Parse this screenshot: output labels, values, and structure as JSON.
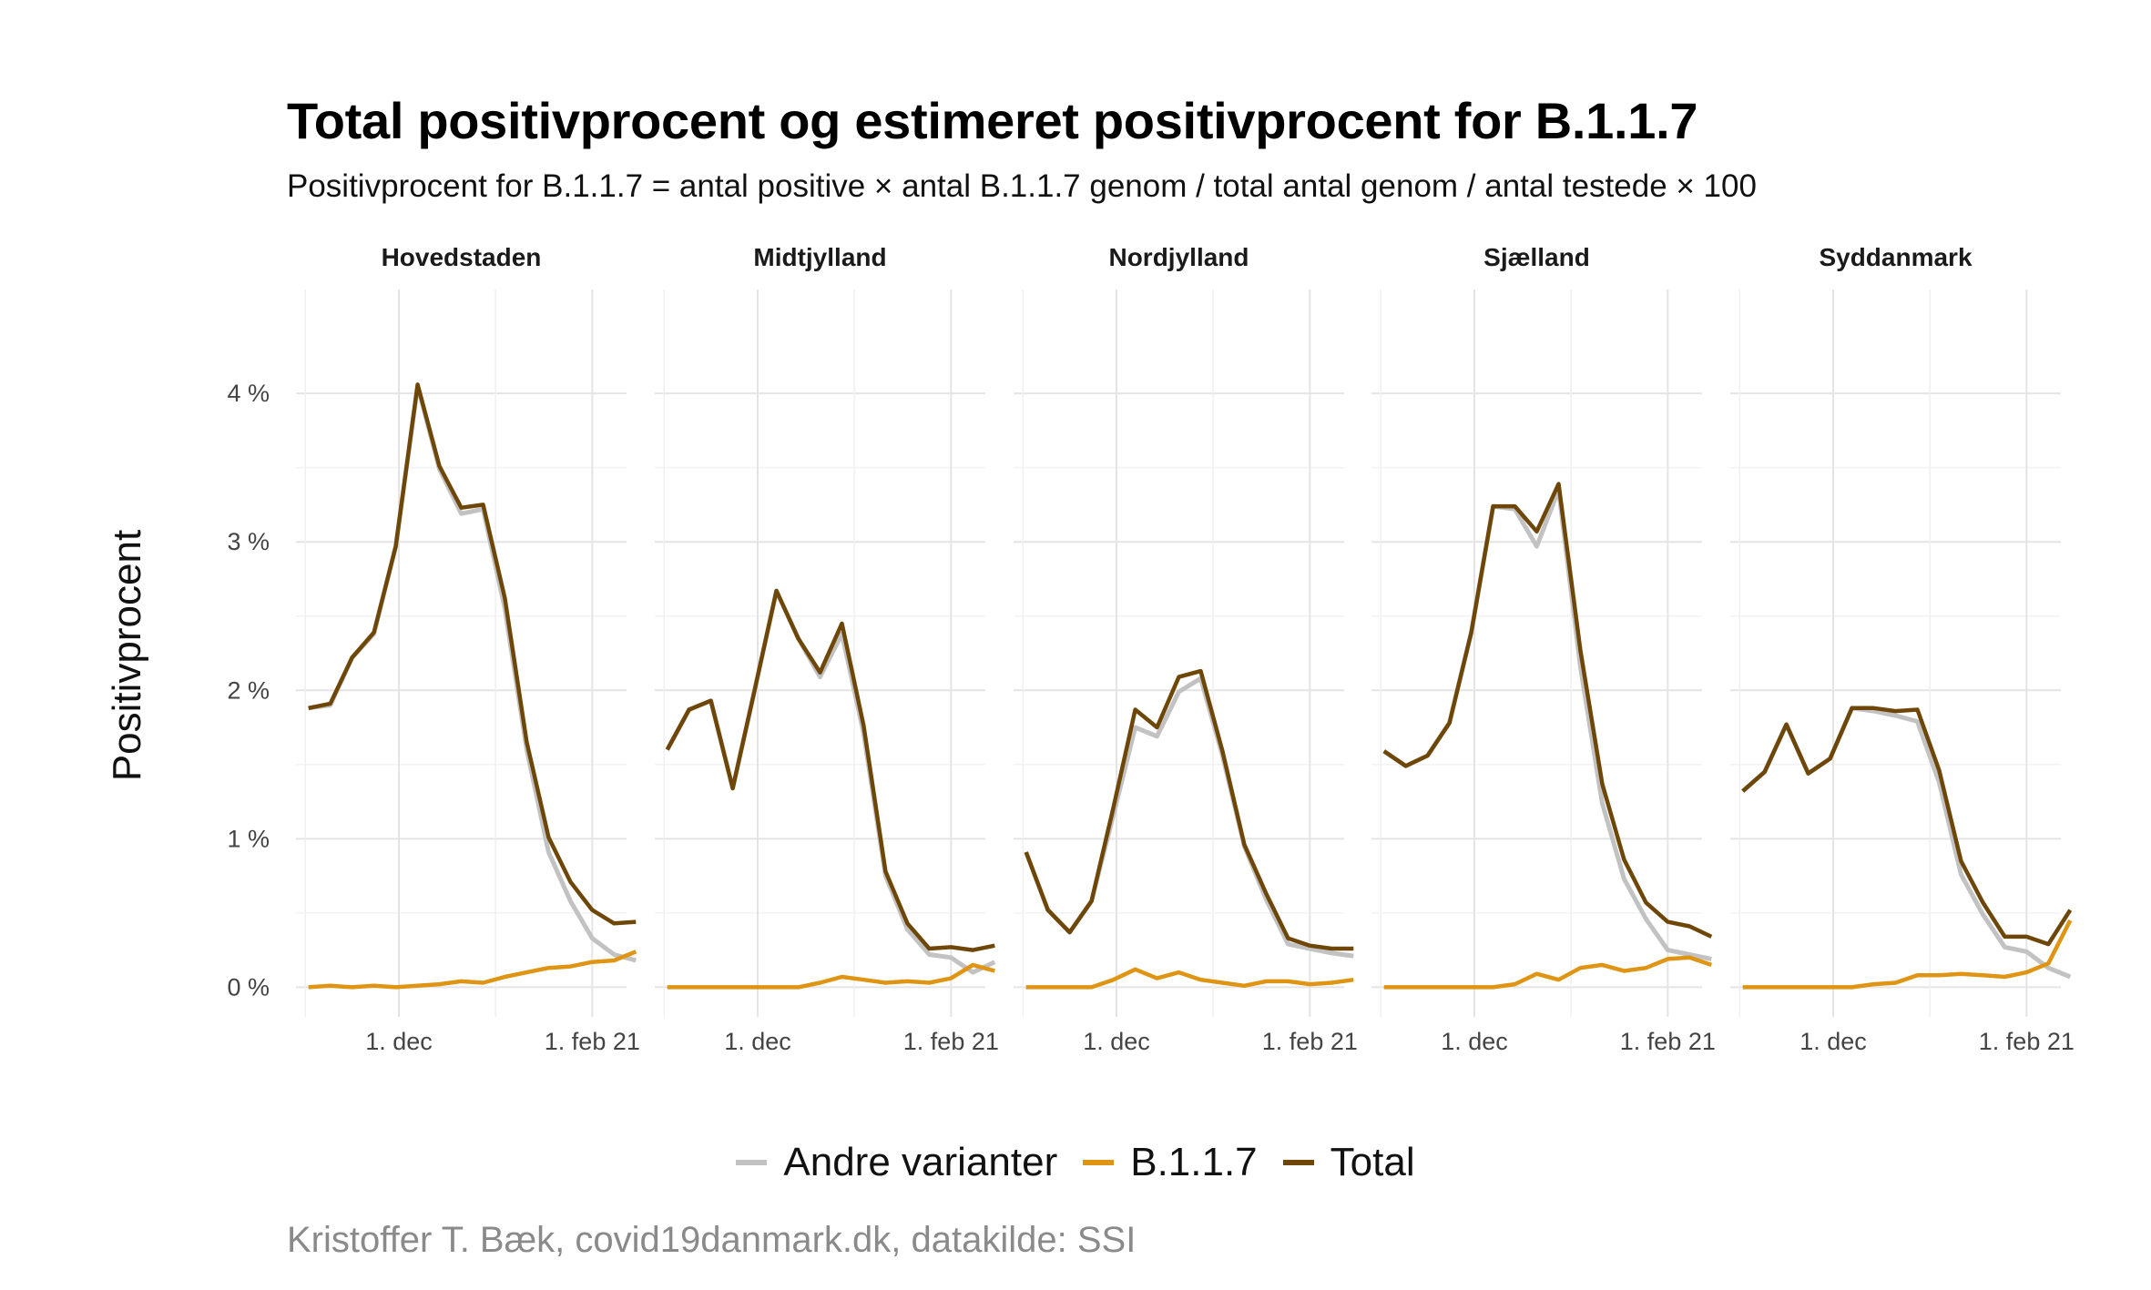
{
  "chart_data": {
    "type": "line",
    "title": "Total positivprocent og estimeret positivprocent for B.1.1.7",
    "subtitle": "Positivprocent for B.1.1.7 = antal positive × antal B.1.1.7 genom / total antal genom / antal testede × 100",
    "ylabel": "Positivprocent",
    "xlabel": "",
    "caption": "Kristoffer T. Bæk, covid19danmark.dk, datakilde: SSI",
    "x_start": "2020-11-02",
    "x_step_days": 7,
    "x_range": [
      "2020-10-29",
      "2021-02-12"
    ],
    "ylim": [
      -0.2,
      4.7
    ],
    "y_ticks": [
      0,
      1,
      2,
      3,
      4
    ],
    "y_tick_labels": [
      "0 %",
      "1 %",
      "2 %",
      "3 %",
      "4 %"
    ],
    "x_ticks": [
      {
        "date": "2020-12-01",
        "label": "1. dec"
      },
      {
        "date": "2021-02-01",
        "label": "1. feb 21"
      }
    ],
    "grid": true,
    "legend_position": "bottom",
    "series_meta": [
      {
        "key": "andre",
        "name": "Andre varianter",
        "color": "#c2c2c2"
      },
      {
        "key": "b117",
        "name": "B.1.1.7",
        "color": "#df9513"
      },
      {
        "key": "total",
        "name": "Total",
        "color": "#6e4708"
      }
    ],
    "panels": [
      {
        "name": "Hovedstaden",
        "series": {
          "andre": [
            1.88,
            1.9,
            2.22,
            2.38,
            2.97,
            4.05,
            3.49,
            3.19,
            3.22,
            2.55,
            1.6,
            0.91,
            0.58,
            0.33,
            0.22,
            0.18
          ],
          "b117": [
            0.0,
            0.01,
            0.0,
            0.01,
            0.0,
            0.01,
            0.02,
            0.04,
            0.03,
            0.07,
            0.1,
            0.13,
            0.14,
            0.17,
            0.18,
            0.24
          ],
          "total": [
            1.88,
            1.91,
            2.22,
            2.39,
            2.97,
            4.06,
            3.51,
            3.23,
            3.25,
            2.62,
            1.65,
            1.01,
            0.71,
            0.52,
            0.43,
            0.44
          ]
        }
      },
      {
        "name": "Midtjylland",
        "series": {
          "andre": [
            1.6,
            1.87,
            1.93,
            1.34,
            2.0,
            2.67,
            2.35,
            2.09,
            2.38,
            1.71,
            0.75,
            0.39,
            0.22,
            0.2,
            0.1,
            0.17
          ],
          "b117": [
            0.0,
            0.0,
            0.0,
            0.0,
            0.0,
            0.0,
            0.0,
            0.03,
            0.07,
            0.05,
            0.03,
            0.04,
            0.03,
            0.06,
            0.15,
            0.11
          ],
          "total": [
            1.6,
            1.87,
            1.93,
            1.34,
            2.0,
            2.67,
            2.35,
            2.12,
            2.45,
            1.76,
            0.78,
            0.43,
            0.26,
            0.27,
            0.25,
            0.28
          ]
        }
      },
      {
        "name": "Nordjylland",
        "series": {
          "andre": [
            0.91,
            0.52,
            0.37,
            0.58,
            1.16,
            1.75,
            1.69,
            1.99,
            2.08,
            1.56,
            0.95,
            0.59,
            0.29,
            0.26,
            0.23,
            0.21
          ],
          "b117": [
            0.0,
            0.0,
            0.0,
            0.0,
            0.05,
            0.12,
            0.06,
            0.1,
            0.05,
            0.03,
            0.01,
            0.04,
            0.04,
            0.02,
            0.03,
            0.05
          ],
          "total": [
            0.91,
            0.52,
            0.37,
            0.58,
            1.21,
            1.87,
            1.75,
            2.09,
            2.13,
            1.59,
            0.96,
            0.63,
            0.33,
            0.28,
            0.26,
            0.26
          ]
        }
      },
      {
        "name": "Sjælland",
        "series": {
          "andre": [
            1.59,
            1.49,
            1.56,
            1.78,
            2.39,
            3.24,
            3.22,
            2.97,
            3.35,
            2.16,
            1.24,
            0.73,
            0.46,
            0.25,
            0.22,
            0.19
          ],
          "b117": [
            0.0,
            0.0,
            0.0,
            0.0,
            0.0,
            0.0,
            0.02,
            0.09,
            0.05,
            0.13,
            0.15,
            0.11,
            0.13,
            0.19,
            0.2,
            0.15
          ],
          "total": [
            1.59,
            1.49,
            1.56,
            1.78,
            2.39,
            3.24,
            3.24,
            3.07,
            3.39,
            2.27,
            1.37,
            0.86,
            0.57,
            0.44,
            0.41,
            0.34
          ]
        }
      },
      {
        "name": "Syddanmark",
        "series": {
          "andre": [
            1.32,
            1.45,
            1.77,
            1.44,
            1.54,
            1.88,
            1.86,
            1.83,
            1.79,
            1.38,
            0.76,
            0.49,
            0.27,
            0.24,
            0.13,
            0.07
          ],
          "b117": [
            0.0,
            0.0,
            0.0,
            0.0,
            0.0,
            0.0,
            0.02,
            0.03,
            0.08,
            0.08,
            0.09,
            0.08,
            0.07,
            0.1,
            0.16,
            0.45
          ],
          "total": [
            1.32,
            1.45,
            1.77,
            1.44,
            1.54,
            1.88,
            1.88,
            1.86,
            1.87,
            1.46,
            0.85,
            0.57,
            0.34,
            0.34,
            0.29,
            0.52
          ]
        }
      }
    ]
  }
}
